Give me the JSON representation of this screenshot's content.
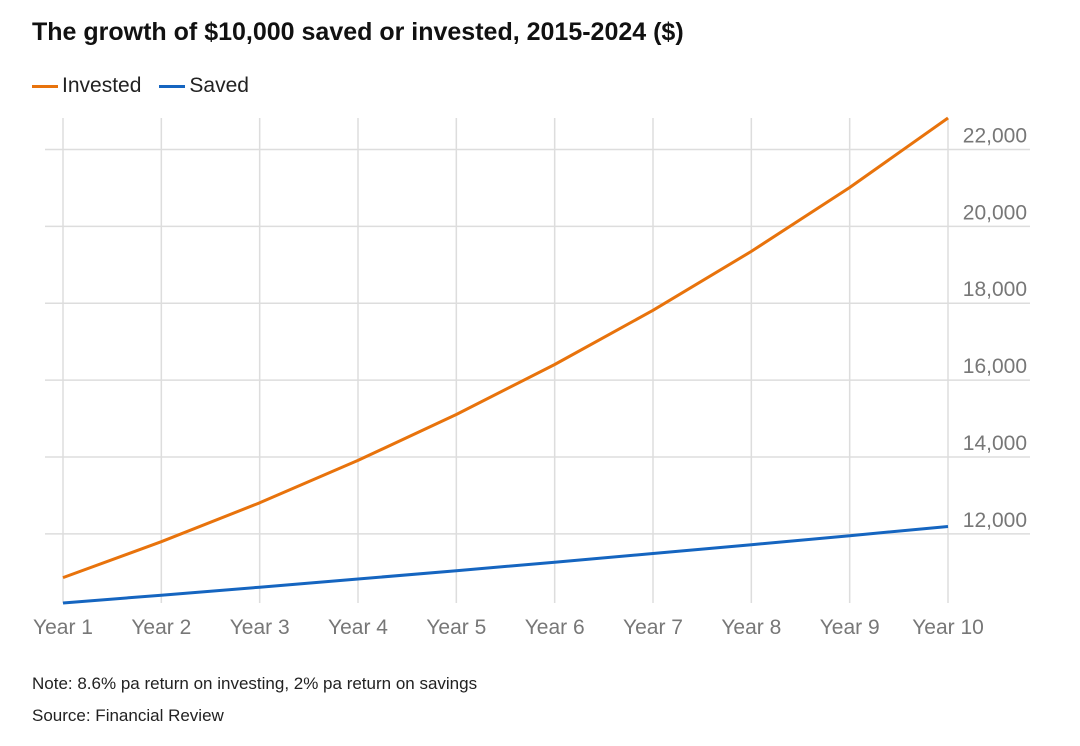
{
  "title": "The growth of $10,000 saved or invested, 2015-2024 ($)",
  "note": "Note: 8.6% pa return on investing, 2% pa return on savings",
  "source": "Source: Financial Review",
  "colors": {
    "invested": "#e8730c",
    "saved": "#1565c0",
    "grid": "#dddddd",
    "tick": "#777777"
  },
  "chart_data": {
    "type": "line",
    "title": "The growth of $10,000 saved or invested, 2015-2024 ($)",
    "categories": [
      "Year 1",
      "Year 2",
      "Year 3",
      "Year 4",
      "Year 5",
      "Year 6",
      "Year 7",
      "Year 8",
      "Year 9",
      "Year 10"
    ],
    "series": [
      {
        "name": "Invested",
        "color": "#e8730c",
        "values": [
          10860,
          11794,
          12808,
          13909,
          15105,
          16404,
          17815,
          19347,
          21011,
          22818
        ]
      },
      {
        "name": "Saved",
        "color": "#1565c0",
        "values": [
          10200,
          10404,
          10612,
          10824,
          11041,
          11262,
          11487,
          11717,
          11951,
          12190
        ]
      }
    ],
    "yticks": [
      12000,
      14000,
      16000,
      18000,
      20000,
      22000
    ],
    "ytick_labels": [
      "12,000",
      "14,000",
      "16,000",
      "18,000",
      "20,000",
      "22,000"
    ],
    "ylim": [
      10200,
      22818
    ],
    "y_axis_side": "right",
    "grid": true,
    "legend": "top-left"
  }
}
